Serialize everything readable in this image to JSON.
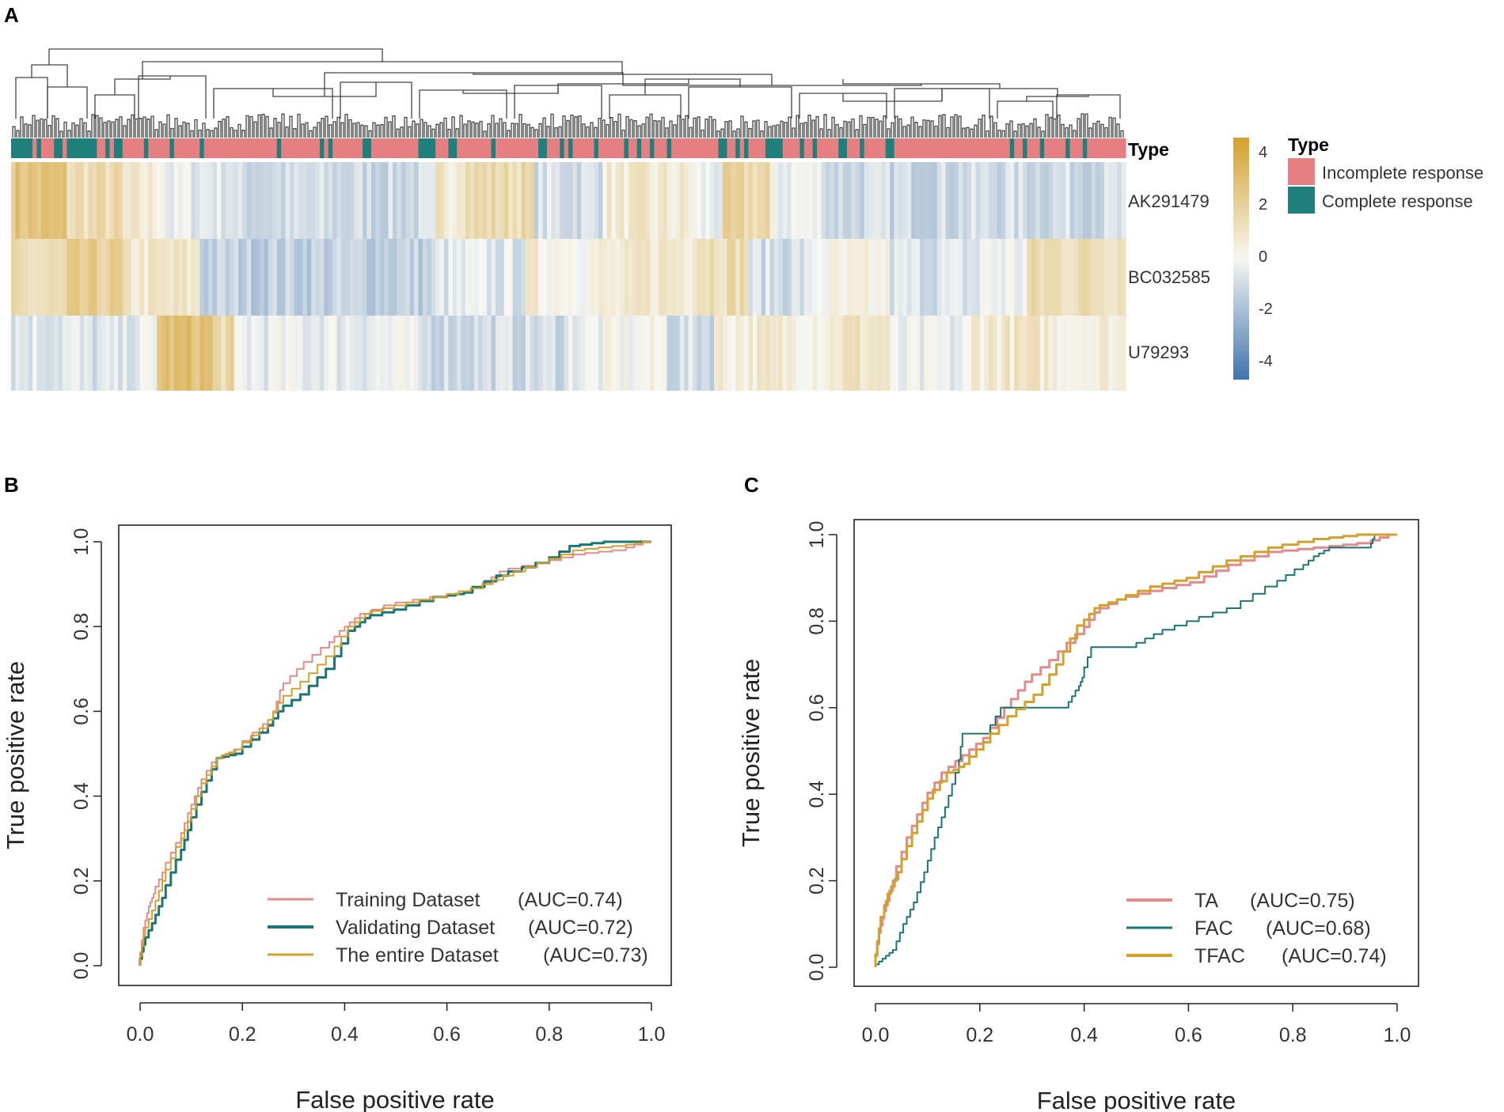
{
  "chart_data": [
    {
      "panel": "A",
      "type": "heatmap",
      "title": "",
      "column_annotation_title": "Type",
      "rows": [
        "AK291479",
        "BC032585",
        "U79293"
      ],
      "n_samples": 260,
      "annotation_legend": {
        "title": "Type",
        "entries": [
          {
            "label": "Incomplete response",
            "color": "#e57f82"
          },
          {
            "label": "Complete response",
            "color": "#1e7f7b"
          }
        ]
      },
      "colorbar": {
        "ticks": [
          "4",
          "2",
          "0",
          "-2",
          "-4"
        ],
        "range": [
          -4.5,
          4.5
        ],
        "low_color": "#3f74ad",
        "mid_color": "#f7f7f3",
        "high_color": "#d3a12c"
      },
      "row_pattern": {
        "AK291479": [
          [
            0,
            0.05,
            2.6
          ],
          [
            0.05,
            0.1,
            1.4
          ],
          [
            0.1,
            0.14,
            0.6
          ],
          [
            0.14,
            0.2,
            -0.4
          ],
          [
            0.2,
            0.38,
            -1.0
          ],
          [
            0.38,
            0.4,
            0.9
          ],
          [
            0.4,
            0.46,
            1.5
          ],
          [
            0.46,
            0.47,
            1.2
          ],
          [
            0.47,
            0.53,
            -0.8
          ],
          [
            0.53,
            0.61,
            0.6
          ],
          [
            0.61,
            0.64,
            -0.3
          ],
          [
            0.64,
            0.68,
            1.6
          ],
          [
            0.68,
            0.73,
            -0.2
          ],
          [
            0.73,
            0.85,
            -1.0
          ],
          [
            0.85,
            1.0,
            -0.9
          ]
        ],
        "BC032585": [
          [
            0,
            0.05,
            1.2
          ],
          [
            0.05,
            0.1,
            2.0
          ],
          [
            0.1,
            0.17,
            0.8
          ],
          [
            0.17,
            0.38,
            -1.3
          ],
          [
            0.38,
            0.46,
            -0.6
          ],
          [
            0.46,
            0.56,
            0.4
          ],
          [
            0.56,
            0.61,
            0.9
          ],
          [
            0.61,
            0.66,
            1.5
          ],
          [
            0.66,
            0.72,
            -0.8
          ],
          [
            0.72,
            0.79,
            0.1
          ],
          [
            0.79,
            0.87,
            -0.7
          ],
          [
            0.87,
            0.91,
            -0.2
          ],
          [
            0.91,
            1.0,
            1.4
          ]
        ],
        "U79293": [
          [
            0,
            0.06,
            -0.5
          ],
          [
            0.06,
            0.1,
            -0.8
          ],
          [
            0.1,
            0.13,
            -0.4
          ],
          [
            0.13,
            0.18,
            2.8
          ],
          [
            0.18,
            0.2,
            1.6
          ],
          [
            0.2,
            0.36,
            -0.3
          ],
          [
            0.36,
            0.5,
            -0.9
          ],
          [
            0.5,
            0.54,
            -0.2
          ],
          [
            0.54,
            0.59,
            0.0
          ],
          [
            0.59,
            0.63,
            -0.9
          ],
          [
            0.63,
            0.74,
            0.6
          ],
          [
            0.74,
            0.79,
            1.0
          ],
          [
            0.79,
            0.86,
            -0.4
          ],
          [
            0.86,
            0.93,
            0.8
          ],
          [
            0.93,
            1.0,
            0.5
          ]
        ]
      }
    },
    {
      "panel": "B",
      "type": "line",
      "xlabel": "False positive rate",
      "ylabel": "True positive rate",
      "xlim": [
        0,
        1
      ],
      "ylim": [
        0,
        1
      ],
      "xticks": [
        "0.0",
        "0.2",
        "0.4",
        "0.6",
        "0.8",
        "1.0"
      ],
      "yticks": [
        "0.0",
        "0.2",
        "0.4",
        "0.6",
        "0.8",
        "1.0"
      ],
      "legend_position": "bottom-right",
      "series": [
        {
          "name": "Training Dataset",
          "auc_text": "(AUC=0.74)",
          "color": "#e48a8c",
          "width": 2,
          "points": [
            [
              0,
              0
            ],
            [
              0.01,
              0.09
            ],
            [
              0.02,
              0.14
            ],
            [
              0.03,
              0.17
            ],
            [
              0.05,
              0.22
            ],
            [
              0.08,
              0.29
            ],
            [
              0.1,
              0.36
            ],
            [
              0.12,
              0.42
            ],
            [
              0.15,
              0.48
            ],
            [
              0.2,
              0.51
            ],
            [
              0.26,
              0.57
            ],
            [
              0.28,
              0.65
            ],
            [
              0.32,
              0.7
            ],
            [
              0.37,
              0.75
            ],
            [
              0.4,
              0.79
            ],
            [
              0.43,
              0.82
            ],
            [
              0.5,
              0.85
            ],
            [
              0.6,
              0.87
            ],
            [
              0.67,
              0.89
            ],
            [
              0.72,
              0.93
            ],
            [
              0.8,
              0.95
            ],
            [
              0.87,
              0.97
            ],
            [
              0.95,
              0.98
            ],
            [
              1,
              1
            ]
          ]
        },
        {
          "name": "Validating Dataset",
          "auc_text": "(AUC=0.72)",
          "color": "#1a7672",
          "width": 3,
          "points": [
            [
              0,
              0
            ],
            [
              0.01,
              0.05
            ],
            [
              0.03,
              0.1
            ],
            [
              0.05,
              0.16
            ],
            [
              0.08,
              0.25
            ],
            [
              0.1,
              0.32
            ],
            [
              0.13,
              0.41
            ],
            [
              0.16,
              0.49
            ],
            [
              0.2,
              0.5
            ],
            [
              0.25,
              0.55
            ],
            [
              0.28,
              0.6
            ],
            [
              0.33,
              0.64
            ],
            [
              0.38,
              0.7
            ],
            [
              0.42,
              0.79
            ],
            [
              0.45,
              0.82
            ],
            [
              0.52,
              0.84
            ],
            [
              0.6,
              0.87
            ],
            [
              0.65,
              0.88
            ],
            [
              0.72,
              0.92
            ],
            [
              0.8,
              0.95
            ],
            [
              0.86,
              0.99
            ],
            [
              0.93,
              1
            ],
            [
              1,
              1
            ]
          ]
        },
        {
          "name": "The entire Dataset",
          "auc_text": "(AUC=0.73)",
          "color": "#d4a02c",
          "width": 2,
          "points": [
            [
              0,
              0
            ],
            [
              0.01,
              0.07
            ],
            [
              0.03,
              0.13
            ],
            [
              0.05,
              0.2
            ],
            [
              0.08,
              0.28
            ],
            [
              0.1,
              0.34
            ],
            [
              0.13,
              0.43
            ],
            [
              0.16,
              0.49
            ],
            [
              0.2,
              0.51
            ],
            [
              0.25,
              0.56
            ],
            [
              0.28,
              0.62
            ],
            [
              0.33,
              0.67
            ],
            [
              0.38,
              0.73
            ],
            [
              0.42,
              0.8
            ],
            [
              0.45,
              0.83
            ],
            [
              0.52,
              0.85
            ],
            [
              0.6,
              0.87
            ],
            [
              0.67,
              0.89
            ],
            [
              0.73,
              0.92
            ],
            [
              0.8,
              0.95
            ],
            [
              0.87,
              0.98
            ],
            [
              0.95,
              0.99
            ],
            [
              1,
              1
            ]
          ]
        }
      ]
    },
    {
      "panel": "C",
      "type": "line",
      "xlabel": "False positive rate",
      "ylabel": "True positive rate",
      "xlim": [
        0,
        1
      ],
      "ylim": [
        0,
        1
      ],
      "xticks": [
        "0.0",
        "0.2",
        "0.4",
        "0.6",
        "0.8",
        "1.0"
      ],
      "yticks": [
        "0.0",
        "0.2",
        "0.4",
        "0.6",
        "0.8",
        "1.0"
      ],
      "legend_position": "bottom-right",
      "series": [
        {
          "name": "TA",
          "auc_text": "(AUC=0.75)",
          "color": "#e48a8c",
          "width": 3,
          "points": [
            [
              0,
              0
            ],
            [
              0.01,
              0.08
            ],
            [
              0.02,
              0.13
            ],
            [
              0.04,
              0.2
            ],
            [
              0.07,
              0.3
            ],
            [
              0.1,
              0.38
            ],
            [
              0.14,
              0.45
            ],
            [
              0.18,
              0.49
            ],
            [
              0.22,
              0.53
            ],
            [
              0.26,
              0.6
            ],
            [
              0.3,
              0.66
            ],
            [
              0.35,
              0.71
            ],
            [
              0.4,
              0.77
            ],
            [
              0.43,
              0.82
            ],
            [
              0.48,
              0.85
            ],
            [
              0.55,
              0.87
            ],
            [
              0.63,
              0.89
            ],
            [
              0.7,
              0.93
            ],
            [
              0.78,
              0.96
            ],
            [
              0.87,
              0.97
            ],
            [
              0.95,
              0.98
            ],
            [
              1,
              1
            ]
          ]
        },
        {
          "name": "FAC",
          "auc_text": "(AUC=0.68)",
          "color": "#1a7672",
          "width": 2,
          "points": [
            [
              0,
              0
            ],
            [
              0.02,
              0.02
            ],
            [
              0.04,
              0.04
            ],
            [
              0.06,
              0.1
            ],
            [
              0.08,
              0.15
            ],
            [
              0.1,
              0.22
            ],
            [
              0.12,
              0.3
            ],
            [
              0.14,
              0.37
            ],
            [
              0.16,
              0.45
            ],
            [
              0.17,
              0.54
            ],
            [
              0.22,
              0.54
            ],
            [
              0.25,
              0.6
            ],
            [
              0.3,
              0.6
            ],
            [
              0.37,
              0.6
            ],
            [
              0.39,
              0.64
            ],
            [
              0.4,
              0.67
            ],
            [
              0.42,
              0.74
            ],
            [
              0.5,
              0.74
            ],
            [
              0.55,
              0.77
            ],
            [
              0.62,
              0.8
            ],
            [
              0.7,
              0.83
            ],
            [
              0.77,
              0.88
            ],
            [
              0.82,
              0.92
            ],
            [
              0.85,
              0.95
            ],
            [
              0.88,
              0.97
            ],
            [
              0.95,
              0.97
            ],
            [
              0.96,
              1
            ],
            [
              1,
              1
            ]
          ]
        },
        {
          "name": "TFAC",
          "auc_text": "(AUC=0.74)",
          "color": "#d4a02c",
          "width": 3,
          "points": [
            [
              0,
              0
            ],
            [
              0.01,
              0.09
            ],
            [
              0.03,
              0.17
            ],
            [
              0.05,
              0.22
            ],
            [
              0.08,
              0.31
            ],
            [
              0.11,
              0.39
            ],
            [
              0.15,
              0.45
            ],
            [
              0.18,
              0.47
            ],
            [
              0.22,
              0.52
            ],
            [
              0.27,
              0.58
            ],
            [
              0.32,
              0.63
            ],
            [
              0.36,
              0.7
            ],
            [
              0.4,
              0.79
            ],
            [
              0.43,
              0.83
            ],
            [
              0.48,
              0.85
            ],
            [
              0.55,
              0.88
            ],
            [
              0.62,
              0.9
            ],
            [
              0.7,
              0.94
            ],
            [
              0.78,
              0.97
            ],
            [
              0.87,
              0.99
            ],
            [
              0.95,
              1
            ],
            [
              1,
              1
            ]
          ]
        }
      ]
    }
  ],
  "panel_labels": {
    "a": "A",
    "b": "B",
    "c": "C"
  }
}
